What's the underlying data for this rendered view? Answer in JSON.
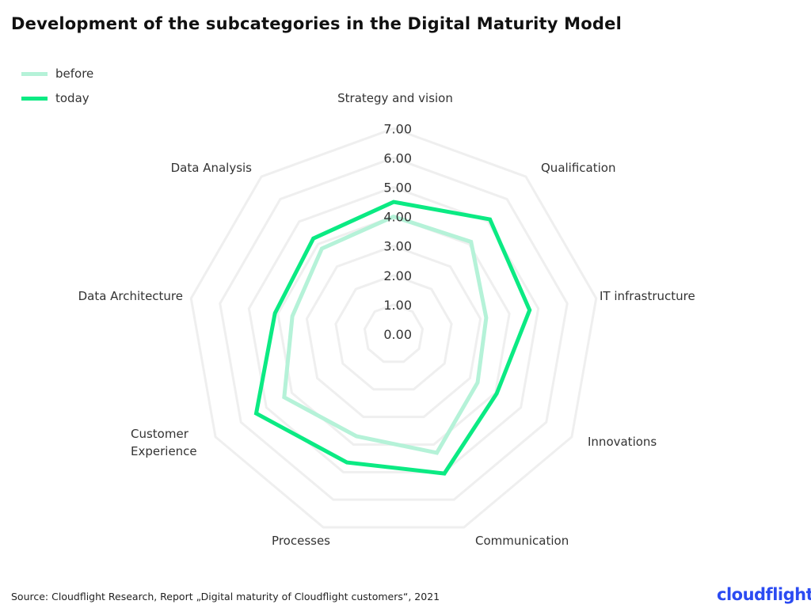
{
  "chart_data": {
    "type": "radar",
    "title": "Development of the subcategories in the Digital Maturity Model",
    "categories": [
      "Strategy and vision",
      "Qualification",
      "IT infrastructure",
      "Innovations",
      "Communication",
      "Processes",
      "Customer Experience",
      "Data Architecture",
      "Data Analysis"
    ],
    "rlim": [
      0,
      7
    ],
    "ticks": [
      "0.00",
      "1.00",
      "2.00",
      "3.00",
      "4.00",
      "5.00",
      "6.00",
      "7.00"
    ],
    "grid": true,
    "legend_position": "top-left",
    "series": [
      {
        "name": "before",
        "color": "#B5F2D8",
        "values": [
          4.0,
          4.1,
          3.2,
          3.3,
          4.3,
          3.7,
          4.3,
          3.5,
          3.8
        ]
      },
      {
        "name": "today",
        "color": "#0BEA83",
        "values": [
          4.5,
          5.1,
          4.7,
          4.05,
          5.05,
          4.65,
          5.4,
          4.1,
          4.25
        ]
      }
    ]
  },
  "source": "Source: Cloudflight Research, Report „Digital maturity of Cloudflight customers“, 2021",
  "logo": "cloudflight"
}
